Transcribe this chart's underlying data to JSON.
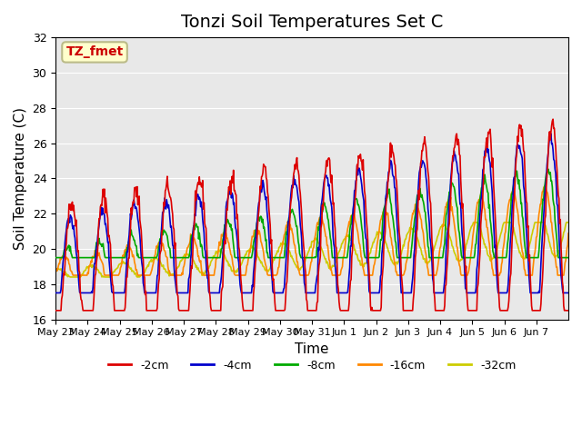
{
  "title": "Tonzi Soil Temperatures Set C",
  "xlabel": "Time",
  "ylabel": "Soil Temperature (C)",
  "ylim": [
    16,
    32
  ],
  "yticks": [
    16,
    18,
    20,
    22,
    24,
    26,
    28,
    30,
    32
  ],
  "xtick_labels": [
    "May 23",
    "May 24",
    "May 25",
    "May 26",
    "May 27",
    "May 28",
    "May 29",
    "May 30",
    "May 31",
    "Jun 1",
    "Jun 2",
    "Jun 3",
    "Jun 4",
    "Jun 5",
    "Jun 6",
    "Jun 7"
  ],
  "legend_entries": [
    "-2cm",
    "-4cm",
    "-8cm",
    "-16cm",
    "-32cm"
  ],
  "line_colors": [
    "#dd0000",
    "#0000cc",
    "#00aa00",
    "#ff8800",
    "#cccc00"
  ],
  "annotation_text": "TZ_fmet",
  "annotation_bg": "#ffffcc",
  "annotation_border": "#bbbb88",
  "annotation_text_color": "#cc0000",
  "background_color": "#e8e8e8",
  "title_fontsize": 14,
  "axis_label_fontsize": 11
}
